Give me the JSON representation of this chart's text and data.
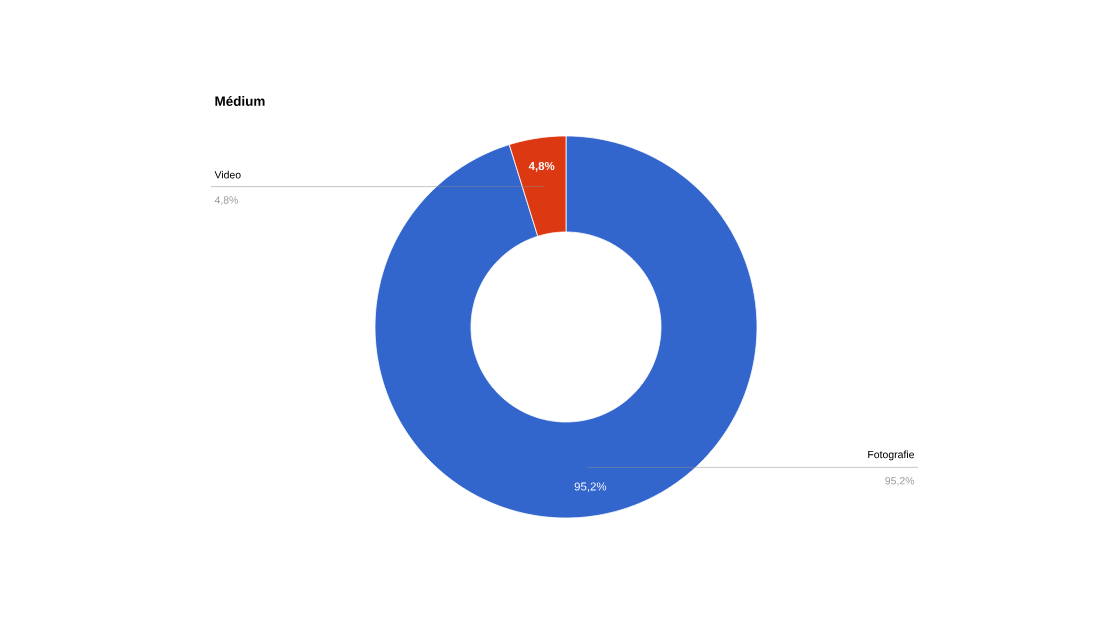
{
  "chart_data": {
    "type": "donut",
    "title": "Médium",
    "categories": [
      "Fotografie",
      "Video"
    ],
    "values": [
      95.2,
      4.8
    ],
    "colors": [
      "#3366cc",
      "#dc3912"
    ],
    "value_labels": [
      "95,2%",
      "4,8%"
    ]
  }
}
